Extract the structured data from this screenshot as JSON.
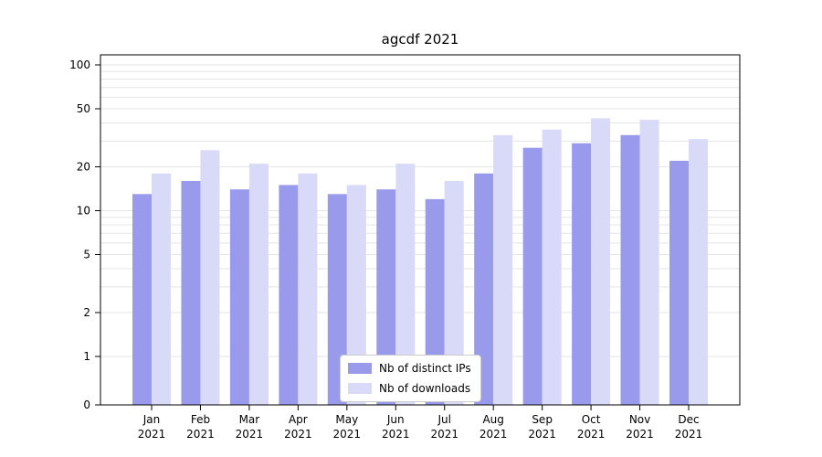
{
  "chart_data": {
    "type": "bar",
    "title": "agcdf 2021",
    "scale": "symlog",
    "categories": [
      "Jan",
      "Feb",
      "Mar",
      "Apr",
      "May",
      "Jun",
      "Jul",
      "Aug",
      "Sep",
      "Oct",
      "Nov",
      "Dec"
    ],
    "category_year": "2021",
    "series": [
      {
        "name": "Nb of distinct IPs",
        "color": "#9a9aec",
        "values": [
          13,
          16,
          14,
          15,
          13,
          14,
          12,
          18,
          27,
          29,
          33,
          22
        ]
      },
      {
        "name": "Nb of downloads",
        "color": "#d9d9f8",
        "values": [
          18,
          26,
          21,
          18,
          15,
          21,
          16,
          33,
          36,
          43,
          42,
          31
        ]
      }
    ],
    "yticks": [
      0,
      1,
      2,
      5,
      10,
      20,
      50,
      100
    ],
    "minor_gridlines": [
      1,
      2,
      3,
      4,
      5,
      6,
      7,
      8,
      9,
      10,
      20,
      30,
      40,
      50,
      60,
      70,
      80,
      90,
      100
    ],
    "ylim": [
      0,
      120
    ],
    "grid_on": true,
    "grid_color": "#e5e5e5",
    "axis_color": "#000000",
    "legend_position": "lower center"
  }
}
